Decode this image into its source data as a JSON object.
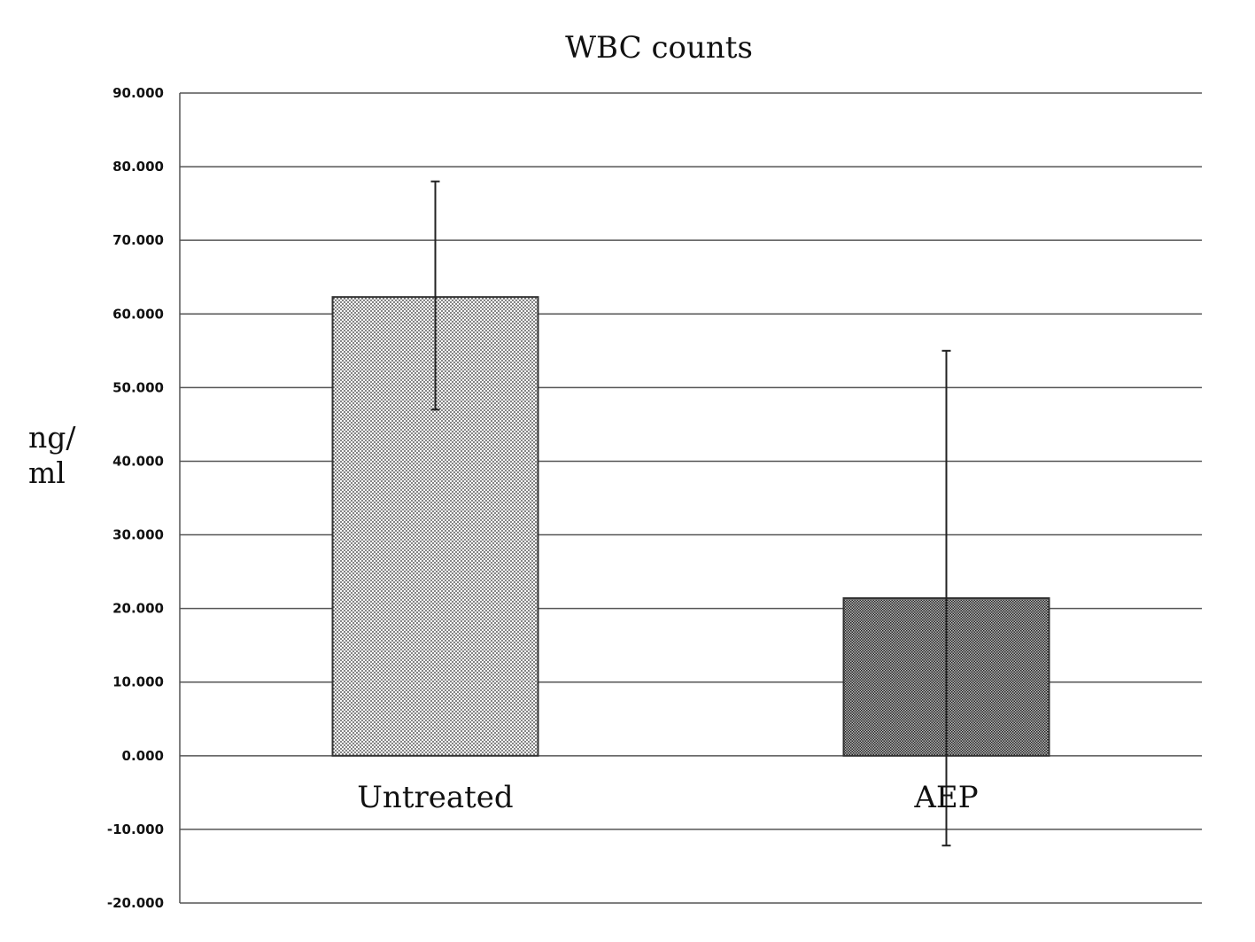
{
  "chart_data": {
    "type": "bar",
    "title": "WBC counts",
    "xlabel": "",
    "ylabel": "ng/ ml",
    "ylabel_lines": [
      "ng/",
      "ml"
    ],
    "categories": [
      "Untreated",
      "AEP"
    ],
    "values": [
      62.3,
      21.4
    ],
    "error_high": [
      78.0,
      55.0
    ],
    "error_low": [
      47.0,
      -12.2
    ],
    "ylim": [
      -20,
      90
    ],
    "yticks": [
      -20,
      -10,
      0,
      10,
      20,
      30,
      40,
      50,
      60,
      70,
      80,
      90
    ],
    "ytick_labels": [
      "-20.000",
      "-10.000",
      "0.000",
      "10.000",
      "20.000",
      "30.000",
      "40.000",
      "50.000",
      "60.000",
      "70.000",
      "80.000",
      "90.000"
    ],
    "grid": true,
    "legend": "none",
    "colors": {
      "line": "#444444",
      "bar_light_fill": "#f2f2f2",
      "bar_dark_fill": "#8c8c8c"
    }
  }
}
